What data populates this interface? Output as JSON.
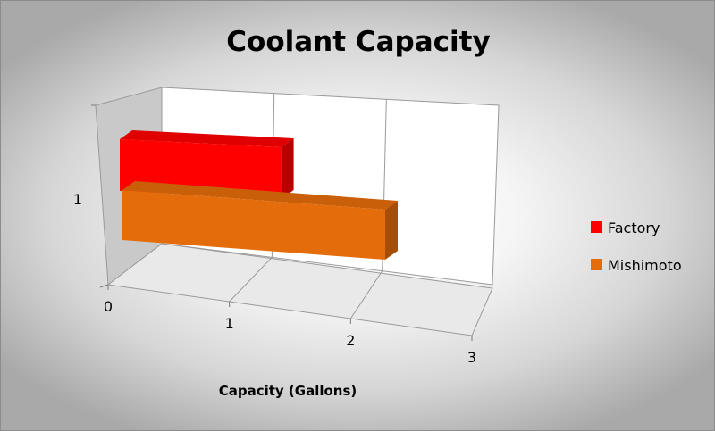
{
  "chart_data": {
    "type": "bar",
    "orientation": "horizontal",
    "three_d": true,
    "title": "Coolant Capacity",
    "xlabel": "Capacity (Gallons)",
    "ylabel": "",
    "categories": [
      "1"
    ],
    "series": [
      {
        "name": "Factory",
        "values": [
          1.5
        ],
        "color": "#ff0000"
      },
      {
        "name": "Mishimoto",
        "values": [
          2.5
        ],
        "color": "#e46c0a"
      }
    ],
    "xlim": [
      0,
      3
    ],
    "x_ticks": [
      "0",
      "1",
      "2",
      "3"
    ],
    "grid": true,
    "legend_position": "right",
    "wall_color": "#ffffff",
    "side_wall_color": "#c8c8c8"
  }
}
